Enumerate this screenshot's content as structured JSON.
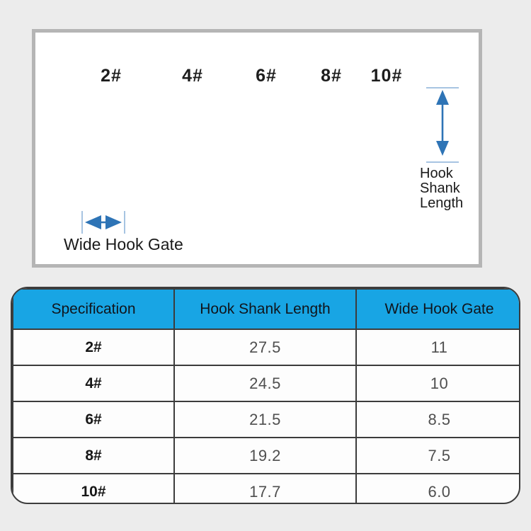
{
  "panel": {
    "size_labels": [
      "2#",
      "4#",
      "6#",
      "8#",
      "10#"
    ],
    "shank_arrow_label": "Hook\nShank\nLength",
    "gate_arrow_label": "Wide Hook Gate"
  },
  "table": {
    "headers": [
      "Specification",
      "Hook Shank Length",
      "Wide Hook Gate"
    ],
    "rows": [
      [
        "2#",
        "27.5",
        "11"
      ],
      [
        "4#",
        "24.5",
        "10"
      ],
      [
        "6#",
        "21.5",
        "8.5"
      ],
      [
        "8#",
        "19.2",
        "7.5"
      ],
      [
        "10#",
        "17.7",
        "6.0"
      ]
    ]
  },
  "colors": {
    "page_bg": "#ececec",
    "panel_bg": "#ffffff",
    "panel_border": "#b5b5b5",
    "table_header_bg": "#18a5e4",
    "table_line": "#3c3c3c",
    "row_bg": "#fdfdfd",
    "label_color": "#1d1d1d",
    "value_color": "#4f4f4f",
    "arrow_blue": "#2e74b6",
    "tick_blue": "#a7c4e2",
    "hook_dark": "#2b2a24",
    "feather_greens": [
      "#8dc63f",
      "#7cb82f",
      "#9ad13c",
      "#a9d94e",
      "#6fa32a",
      "#bfe35f"
    ]
  }
}
